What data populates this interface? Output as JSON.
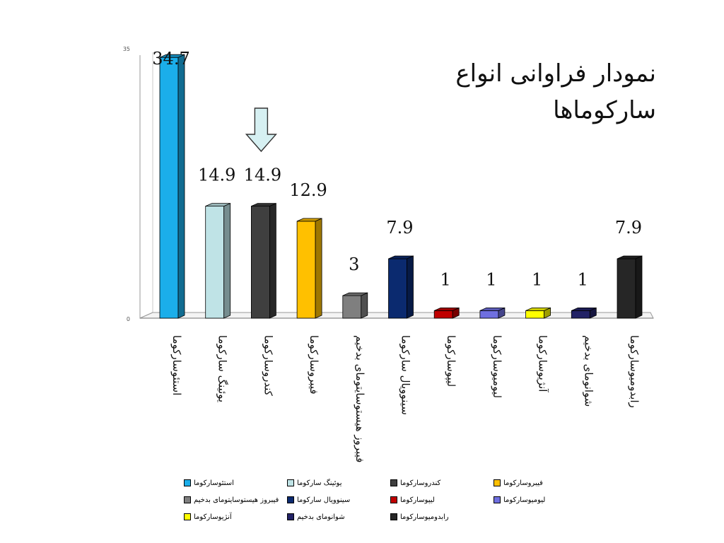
{
  "title": "نمودار فراوانی انواع سارکوماها",
  "chart_data": {
    "type": "bar",
    "title": "نمودار فراوانی انواع سارکوماها",
    "categories": [
      "استئوسارکوما",
      "یوئینگ سارکوما",
      "کندروسارکوما",
      "فیبروسارکوما",
      "فیبروز هیستوسایتومای بدخیم",
      "سینوویال سارکوما",
      "لیپوسارکوما",
      "لیومیوسارکوما",
      "آنژیوسارکوما",
      "شوانومای بدخیم",
      "رابدومیوسارکوما"
    ],
    "values": [
      34.7,
      14.9,
      14.9,
      12.9,
      3,
      7.9,
      1,
      1,
      1,
      1,
      7.9
    ],
    "data_labels": [
      "34.7",
      "14.9",
      "14.9",
      "12.9",
      "3",
      "7.9",
      "1",
      "1",
      "1",
      "1",
      "7.9"
    ],
    "colors": [
      "#1BAEEA",
      "#BFE3E6",
      "#3F3F3F",
      "#FFC000",
      "#7F7F7F",
      "#0B2A6F",
      "#C00000",
      "#6F6FE0",
      "#FFFF00",
      "#222266",
      "#262626"
    ],
    "ylim": [
      0,
      35
    ],
    "y_ticks": [
      "0",
      "35"
    ],
    "xlabel": "",
    "ylabel": "",
    "legend_position": "bottom",
    "legend": [
      "استئوسارکوما",
      "یوئینگ سارکوما",
      "کندروسارکوما",
      "فیبروسارکوما",
      "فیبروز هیستوسایتومای بدخیم",
      "سینوویال سارکوما",
      "لیپوسارکوما",
      "لیومیوسارکوما",
      "آنژیوسارکوما",
      "شوانومای بدخیم",
      "رابدومیوسارکوما"
    ],
    "annotation": "arrow-down pointing at کندروسارکوما"
  }
}
